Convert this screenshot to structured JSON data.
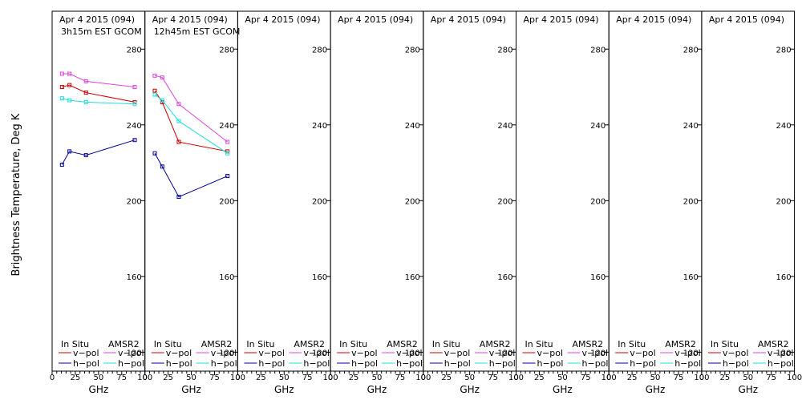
{
  "ylabel": "Brightness Temperature, Deg K",
  "colors": {
    "insitu_v": "#cc0000",
    "insitu_h": "#000099",
    "amsr2_v": "#dd44dd",
    "amsr2_h": "#22dddd",
    "axis": "#000000"
  },
  "legend": {
    "insitu_title": "In Situ",
    "amsr2_title": "AMSR2",
    "vpol": "v−pol",
    "hpol": "h−pol"
  },
  "chart_data": [
    {
      "type": "line",
      "title": "Apr 4 2015 (094)",
      "subtitle": "3h15m EST GCOM",
      "xlabel": "GHz",
      "xlim": [
        0,
        100
      ],
      "ylim": [
        110,
        300
      ],
      "xticks": [
        0,
        25,
        50,
        75,
        100
      ],
      "yticks": [
        120,
        160,
        200,
        240,
        280
      ],
      "series": [
        {
          "name": "In Situ v-pol",
          "x": [
            10.65,
            18.7,
            36.5,
            89.0
          ],
          "y": [
            260,
            261,
            257,
            252
          ]
        },
        {
          "name": "In Situ h-pol",
          "x": [
            10.65,
            18.7,
            36.5,
            89.0
          ],
          "y": [
            219,
            226,
            224,
            232
          ]
        },
        {
          "name": "AMSR2 v-pol",
          "x": [
            10.65,
            18.7,
            36.5,
            89.0
          ],
          "y": [
            267,
            267,
            263,
            260
          ]
        },
        {
          "name": "AMSR2 h-pol",
          "x": [
            10.65,
            18.7,
            36.5,
            89.0
          ],
          "y": [
            254,
            253,
            252,
            251
          ]
        }
      ]
    },
    {
      "type": "line",
      "title": "Apr 4 2015 (094)",
      "subtitle": "12h45m EST GCOM",
      "xlabel": "GHz",
      "xlim": [
        0,
        100
      ],
      "ylim": [
        110,
        300
      ],
      "xticks": [
        0,
        25,
        50,
        75,
        100
      ],
      "yticks": [
        120,
        160,
        200,
        240,
        280
      ],
      "series": [
        {
          "name": "In Situ v-pol",
          "x": [
            10.65,
            18.7,
            36.5,
            89.0
          ],
          "y": [
            258,
            252,
            231,
            226
          ]
        },
        {
          "name": "In Situ h-pol",
          "x": [
            10.65,
            18.7,
            36.5,
            89.0
          ],
          "y": [
            225,
            218,
            202,
            213
          ]
        },
        {
          "name": "AMSR2 v-pol",
          "x": [
            10.65,
            18.7,
            36.5,
            89.0
          ],
          "y": [
            266,
            265,
            251,
            231
          ]
        },
        {
          "name": "AMSR2 h-pol",
          "x": [
            10.65,
            18.7,
            36.5,
            89.0
          ],
          "y": [
            256,
            253,
            242,
            225
          ]
        }
      ]
    },
    {
      "type": "line",
      "title": "Apr 4 2015 (094)",
      "subtitle": "",
      "xlabel": "GHz",
      "xlim": [
        0,
        100
      ],
      "ylim": [
        110,
        300
      ],
      "xticks": [
        0,
        25,
        50,
        75,
        100
      ],
      "yticks": [
        120,
        160,
        200,
        240,
        280
      ],
      "series": []
    },
    {
      "type": "line",
      "title": "Apr 4 2015 (094)",
      "subtitle": "",
      "xlabel": "GHz",
      "xlim": [
        0,
        100
      ],
      "ylim": [
        110,
        300
      ],
      "xticks": [
        0,
        25,
        50,
        75,
        100
      ],
      "yticks": [
        120,
        160,
        200,
        240,
        280
      ],
      "series": []
    },
    {
      "type": "line",
      "title": "Apr 4 2015 (094)",
      "subtitle": "",
      "xlabel": "GHz",
      "xlim": [
        0,
        100
      ],
      "ylim": [
        110,
        300
      ],
      "xticks": [
        0,
        25,
        50,
        75,
        100
      ],
      "yticks": [
        120,
        160,
        200,
        240,
        280
      ],
      "series": []
    },
    {
      "type": "line",
      "title": "Apr 4 2015 (094)",
      "subtitle": "",
      "xlabel": "GHz",
      "xlim": [
        0,
        100
      ],
      "ylim": [
        110,
        300
      ],
      "xticks": [
        0,
        25,
        50,
        75,
        100
      ],
      "yticks": [
        120,
        160,
        200,
        240,
        280
      ],
      "series": []
    },
    {
      "type": "line",
      "title": "Apr 4 2015 (094)",
      "subtitle": "",
      "xlabel": "GHz",
      "xlim": [
        0,
        100
      ],
      "ylim": [
        110,
        300
      ],
      "xticks": [
        0,
        25,
        50,
        75,
        100
      ],
      "yticks": [
        120,
        160,
        200,
        240,
        280
      ],
      "series": []
    },
    {
      "type": "line",
      "title": "Apr 4 2015 (094)",
      "subtitle": "",
      "xlabel": "GHz",
      "xlim": [
        0,
        100
      ],
      "ylim": [
        110,
        300
      ],
      "xticks": [
        0,
        25,
        50,
        75,
        100
      ],
      "yticks": [
        120,
        160,
        200,
        240,
        280
      ],
      "series": []
    }
  ]
}
